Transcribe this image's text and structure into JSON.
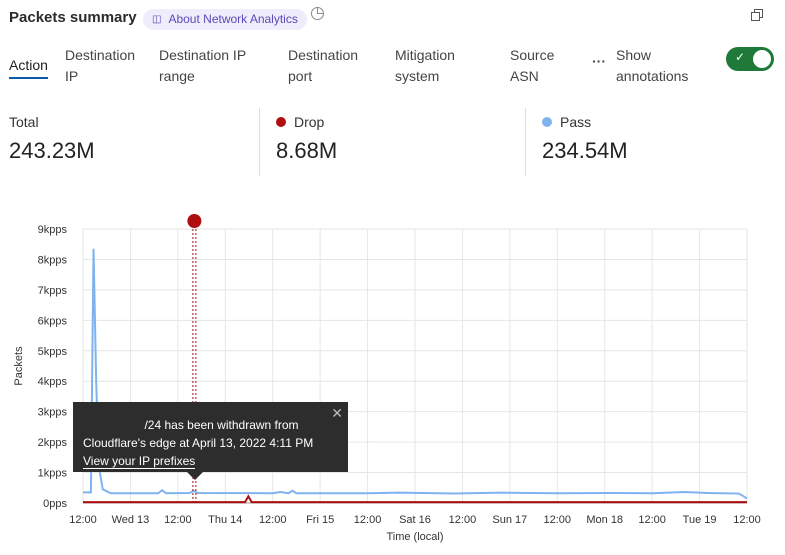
{
  "header": {
    "title": "Packets summary",
    "about_label": "About Network Analytics",
    "about_icon": "book-icon",
    "history_icon": "history-icon",
    "popout_icon": "popout-icon"
  },
  "tabs": [
    {
      "label": "Action",
      "active": true
    },
    {
      "label": "Destination IP"
    },
    {
      "label": "Destination IP range"
    },
    {
      "label": "Destination port"
    },
    {
      "label": "Mitigation system"
    },
    {
      "label": "Source ASN"
    }
  ],
  "more_icon": "ellipsis-icon",
  "annotations_toggle": {
    "label": "Show annotations",
    "on": true,
    "color": "#1f7a3a"
  },
  "stats": [
    {
      "label": "Total",
      "value": "243.23M"
    },
    {
      "label": "Drop",
      "value": "8.68M",
      "color": "#b00e0e"
    },
    {
      "label": "Pass",
      "value": "234.54M",
      "color": "#7eb3f0"
    }
  ],
  "tooltip": {
    "line1": "/24 has been withdrawn from",
    "line2": "Cloudflare's edge at April 13, 2022 4:11 PM",
    "link": "View your IP prefixes"
  },
  "chart_data": {
    "type": "line",
    "xlabel": "Time (local)",
    "ylabel": "Packets",
    "xlim": [
      "2022-04-12T12:00",
      "2022-04-19T12:00"
    ],
    "ylim": [
      0,
      9000
    ],
    "y_ticks": [
      "0pps",
      "1kpps",
      "2kpps",
      "3kpps",
      "4kpps",
      "5kpps",
      "6kpps",
      "7kpps",
      "8kpps",
      "9kpps"
    ],
    "x_ticks": [
      "12:00",
      "Wed 13",
      "12:00",
      "Thu 14",
      "12:00",
      "Fri 15",
      "12:00",
      "Sat 16",
      "12:00",
      "Sun 17",
      "12:00",
      "Mon 18",
      "12:00",
      "Tue 19",
      "12:00"
    ],
    "grid": true,
    "annotation": {
      "time": "2022-04-13T16:11",
      "color": "#b00e0e"
    },
    "series": [
      {
        "key": "pass",
        "color": "#7eb3f0",
        "points": [
          [
            "2022-04-12T12:00",
            350
          ],
          [
            "2022-04-12T14:00",
            350
          ],
          [
            "2022-04-12T14:40",
            8350
          ],
          [
            "2022-04-12T15:20",
            4000
          ],
          [
            "2022-04-12T16:00",
            1200
          ],
          [
            "2022-04-12T17:00",
            450
          ],
          [
            "2022-04-12T19:00",
            320
          ],
          [
            "2022-04-13T07:00",
            320
          ],
          [
            "2022-04-13T08:00",
            420
          ],
          [
            "2022-04-13T09:00",
            320
          ],
          [
            "2022-04-13T15:00",
            330
          ],
          [
            "2022-04-13T16:00",
            400
          ],
          [
            "2022-04-13T17:00",
            330
          ],
          [
            "2022-04-14T12:00",
            320
          ],
          [
            "2022-04-14T14:00",
            360
          ],
          [
            "2022-04-14T16:00",
            320
          ],
          [
            "2022-04-14T17:00",
            400
          ],
          [
            "2022-04-14T18:00",
            320
          ],
          [
            "2022-04-15T12:00",
            320
          ],
          [
            "2022-04-15T20:00",
            340
          ],
          [
            "2022-04-16T10:00",
            310
          ],
          [
            "2022-04-16T22:00",
            340
          ],
          [
            "2022-04-17T12:00",
            320
          ],
          [
            "2022-04-18T02:00",
            330
          ],
          [
            "2022-04-18T12:00",
            320
          ],
          [
            "2022-04-18T20:00",
            360
          ],
          [
            "2022-04-19T02:00",
            330
          ],
          [
            "2022-04-19T10:00",
            310
          ],
          [
            "2022-04-19T12:00",
            150
          ]
        ]
      },
      {
        "key": "drop",
        "color": "#b00e0e",
        "points": [
          [
            "2022-04-12T12:00",
            30
          ],
          [
            "2022-04-14T05:00",
            30
          ],
          [
            "2022-04-14T05:50",
            220
          ],
          [
            "2022-04-14T06:40",
            30
          ],
          [
            "2022-04-19T12:00",
            30
          ]
        ]
      }
    ]
  }
}
